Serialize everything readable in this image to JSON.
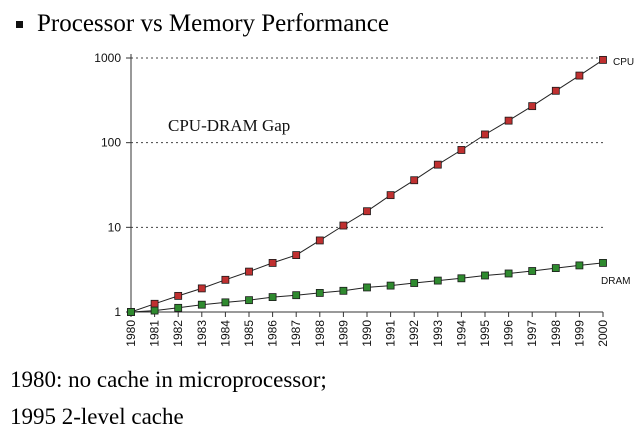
{
  "slide": {
    "heading": "Processor vs Memory Performance",
    "footer_line1": "1980: no cache in microprocessor;",
    "footer_line2": "1995 2-level cache"
  },
  "chart_data": {
    "type": "line",
    "title": "",
    "xlabel": "",
    "ylabel": "",
    "yscale": "log",
    "ylim": [
      1,
      1000
    ],
    "yticks": [
      1,
      10,
      100,
      1000
    ],
    "ytick_labels": [
      "1",
      "10",
      "100",
      "1000"
    ],
    "grid": "horizontal dotted at major ticks",
    "x": [
      1980,
      1981,
      1982,
      1983,
      1984,
      1985,
      1986,
      1987,
      1988,
      1989,
      1990,
      1991,
      1992,
      1993,
      1994,
      1995,
      1996,
      1997,
      1998,
      1999,
      2000
    ],
    "series": [
      {
        "name": "CPU",
        "color": "#c03030",
        "values": [
          1,
          1.25,
          1.55,
          1.9,
          2.4,
          3.0,
          3.8,
          4.7,
          7.0,
          10.5,
          15.5,
          24,
          36,
          55,
          82,
          125,
          182,
          270,
          410,
          620,
          950
        ]
      },
      {
        "name": "DRAM",
        "color": "#2f8a2f",
        "values": [
          1,
          1.04,
          1.12,
          1.22,
          1.3,
          1.38,
          1.5,
          1.58,
          1.68,
          1.78,
          1.95,
          2.05,
          2.2,
          2.35,
          2.5,
          2.7,
          2.85,
          3.05,
          3.3,
          3.55,
          3.8
        ]
      }
    ],
    "annotations": [
      {
        "text": "CPU-DRAM Gap"
      }
    ]
  }
}
